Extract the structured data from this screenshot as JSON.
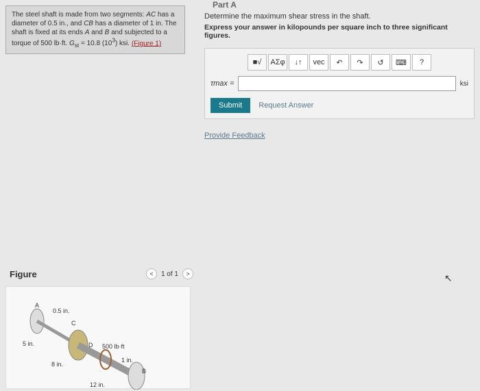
{
  "problem": {
    "text_html": "The steel shaft is made from two segments: <i>AC</i> has a diameter of 0.5 in., and <i>CB</i> has a diameter of 1 in. The shaft is fixed at its ends <i>A</i> and <i>B</i> and subjected to a torque of 500 lb·ft. <i>G</i><sub>st</sub> = 10.8 (10<sup>3</sup>) ksi.",
    "figure_link": "(Figure 1)"
  },
  "part_label": "Part A",
  "question": {
    "prompt": "Determine the maximum shear stress in the shaft.",
    "instruction": "Express your answer in kilopounds per square inch to three significant figures."
  },
  "toolbar": {
    "templates": "■√",
    "symbols": "ΑΣφ",
    "arrows": "↓↑",
    "vec": "vec",
    "undo": "↶",
    "redo": "↷",
    "reset": "↺",
    "keyboard": "⌨",
    "help": "?"
  },
  "input": {
    "var_label": "τmax =",
    "value": "",
    "unit": "ksi"
  },
  "buttons": {
    "submit": "Submit",
    "request": "Request Answer"
  },
  "feedback_link": "Provide Feedback",
  "figure": {
    "title": "Figure",
    "pager": "1 of 1",
    "labels": {
      "A": "A",
      "C": "C",
      "B": "B",
      "D": "D",
      "dia_ac": "0.5 in.",
      "len_ac": "5 in.",
      "len_cd": "8 in.",
      "len_db": "12 in.",
      "dia_cb": "1 in.",
      "torque": "500 lb·ft"
    }
  }
}
